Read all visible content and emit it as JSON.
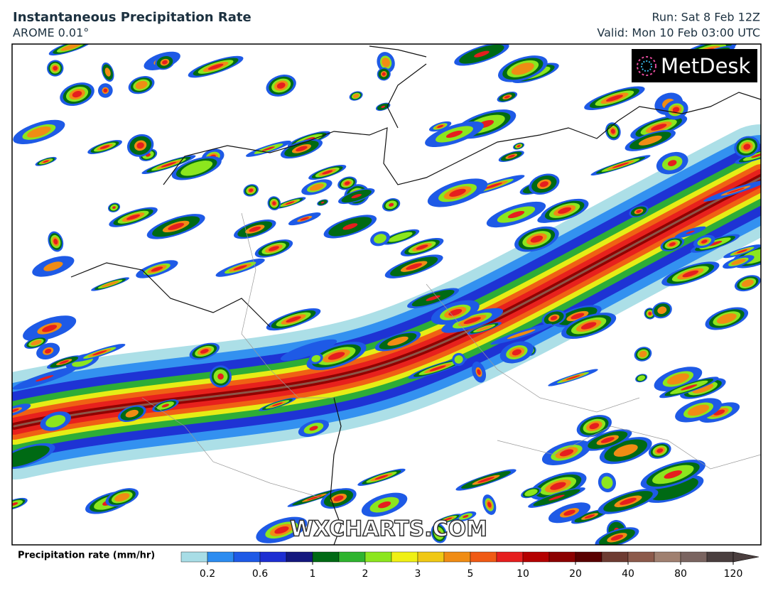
{
  "header": {
    "title": "Instantaneous Precipitation Rate",
    "model": "AROME 0.01°",
    "run": "Run: Sat 8 Feb 12Z",
    "valid": "Valid: Mon 10 Feb 03:00 UTC"
  },
  "logo": "MetDesk",
  "watermark": "WXCHARTS.COM",
  "legend": {
    "title": "Precipitation rate (mm/hr)",
    "colors": [
      "#a8dde6",
      "#2c8cf0",
      "#1e5ae6",
      "#1e2ed2",
      "#14187e",
      "#006a14",
      "#2eb42e",
      "#8ce61e",
      "#f0f014",
      "#f0c814",
      "#f08c14",
      "#f05a14",
      "#e61e1e",
      "#b40000",
      "#8c0000",
      "#5a0000",
      "#6e3c32",
      "#8c5a4b",
      "#a08070",
      "#7a6460",
      "#4a3e3e"
    ],
    "ticks": [
      0.2,
      0.6,
      1,
      2,
      3,
      5,
      10,
      20,
      40,
      80,
      120
    ]
  }
}
